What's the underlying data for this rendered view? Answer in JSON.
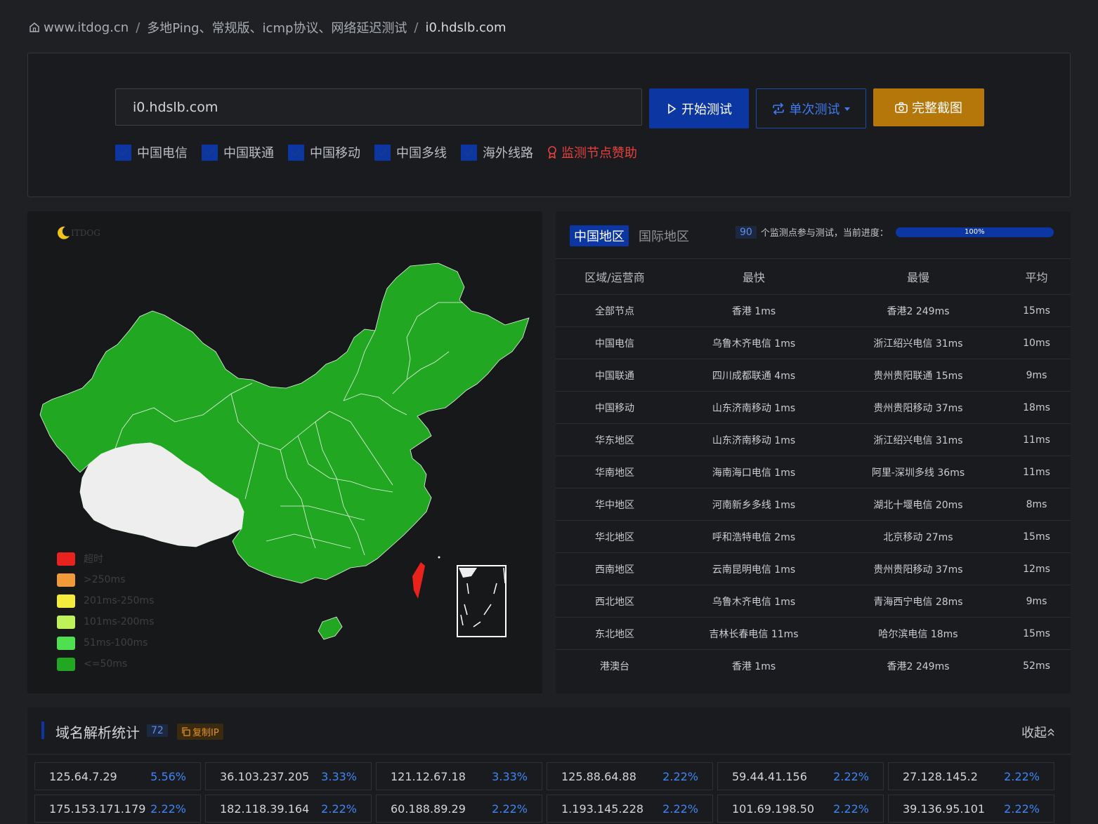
{
  "breadcrumb": {
    "home": "www.itdog.cn",
    "section": "多地Ping、常规版、icmp协议、网络延迟测试",
    "current": "i0.hdslb.com"
  },
  "search": {
    "value": "i0.hdslb.com",
    "start_label": "开始测试",
    "mode_label": "单次测试",
    "screenshot_label": "完整截图"
  },
  "filters": [
    "中国电信",
    "中国联通",
    "中国移动",
    "中国多线",
    "海外线路"
  ],
  "sponsor_label": "监测节点赞助",
  "map": {
    "logo_text": "ITDOG",
    "legend": [
      {
        "label": "超时",
        "color": "#e8231d"
      },
      {
        "label": ">250ms",
        "color": "#f19a3a"
      },
      {
        "label": "201ms-250ms",
        "color": "#f3ec3c"
      },
      {
        "label": "101ms-200ms",
        "color": "#bff25a"
      },
      {
        "label": "51ms-100ms",
        "color": "#4fe04f"
      },
      {
        "label": "<=50ms",
        "color": "#22a722"
      }
    ]
  },
  "stats": {
    "tabs": [
      "中国地区",
      "国际地区"
    ],
    "node_count": "90",
    "progress_text": "个监测点参与测试，当前进度：",
    "progress_value": 1.0,
    "progress_label": "100%",
    "headers": [
      "区域/运营商",
      "最快",
      "最慢",
      "平均"
    ],
    "rows": [
      [
        "全部节点",
        "香港 1ms",
        "香港2 249ms",
        "15ms"
      ],
      [
        "中国电信",
        "乌鲁木齐电信 1ms",
        "浙江绍兴电信 31ms",
        "10ms"
      ],
      [
        "中国联通",
        "四川成都联通 4ms",
        "贵州贵阳联通 15ms",
        "9ms"
      ],
      [
        "中国移动",
        "山东济南移动 1ms",
        "贵州贵阳移动 37ms",
        "18ms"
      ],
      [
        "华东地区",
        "山东济南移动 1ms",
        "浙江绍兴电信 31ms",
        "11ms"
      ],
      [
        "华南地区",
        "海南海口电信 1ms",
        "阿里-深圳多线 36ms",
        "11ms"
      ],
      [
        "华中地区",
        "河南新乡多线 1ms",
        "湖北十堰电信 20ms",
        "8ms"
      ],
      [
        "华北地区",
        "呼和浩特电信 2ms",
        "北京移动 27ms",
        "15ms"
      ],
      [
        "西南地区",
        "云南昆明电信 1ms",
        "贵州贵阳移动 37ms",
        "12ms"
      ],
      [
        "西北地区",
        "乌鲁木齐电信 1ms",
        "青海西宁电信 28ms",
        "9ms"
      ],
      [
        "东北地区",
        "吉林长春电信 11ms",
        "哈尔滨电信 18ms",
        "15ms"
      ],
      [
        "港澳台",
        "香港 1ms",
        "香港2 249ms",
        "52ms"
      ]
    ]
  },
  "dns": {
    "title": "域名解析统计",
    "count": "72",
    "copy_label": "复制IP",
    "collapse_label": "收起",
    "ips": [
      {
        "ip": "125.64.7.29",
        "pct": "5.56%"
      },
      {
        "ip": "36.103.237.205",
        "pct": "3.33%"
      },
      {
        "ip": "121.12.67.18",
        "pct": "3.33%"
      },
      {
        "ip": "125.88.64.88",
        "pct": "2.22%"
      },
      {
        "ip": "59.44.41.156",
        "pct": "2.22%"
      },
      {
        "ip": "27.128.145.2",
        "pct": "2.22%"
      },
      {
        "ip": "175.153.171.179",
        "pct": "2.22%"
      },
      {
        "ip": "182.118.39.164",
        "pct": "2.22%"
      },
      {
        "ip": "60.188.89.29",
        "pct": "2.22%"
      },
      {
        "ip": "1.193.145.228",
        "pct": "2.22%"
      },
      {
        "ip": "101.69.198.50",
        "pct": "2.22%"
      },
      {
        "ip": "39.136.95.101",
        "pct": "2.22%"
      }
    ]
  },
  "colors": {
    "accent": "#0c37a3",
    "orange": "#b5760a",
    "green": "#22a722",
    "red": "#e8231d",
    "gray_region": "#eeeeee"
  }
}
